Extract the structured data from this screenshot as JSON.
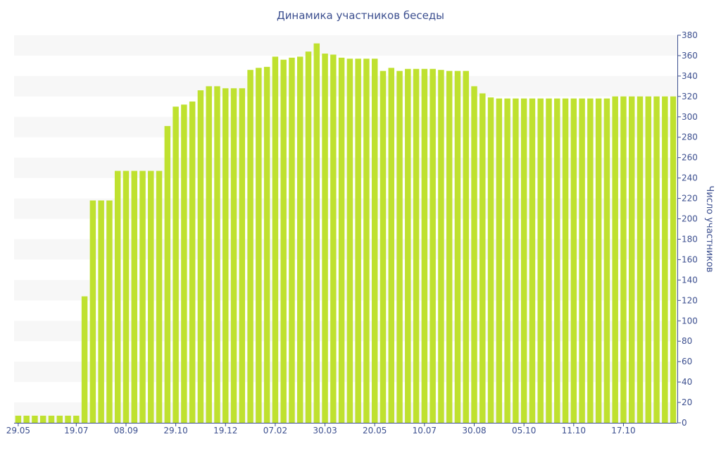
{
  "chart_data": {
    "type": "bar",
    "title": "Динамика участников беседы",
    "ylabel": "Число участников",
    "xlabel": "",
    "ylim": [
      0,
      380
    ],
    "ytick_step": 20,
    "grid": "alternating horizontal bands",
    "bar_color": "#bfe12f",
    "band_color": "#f7f7f7",
    "text_color": "#3c4f8f",
    "x_tick_labels": [
      {
        "label": "29.05",
        "index": 0
      },
      {
        "label": "19.07",
        "index": 7
      },
      {
        "label": "08.09",
        "index": 13
      },
      {
        "label": "29.10",
        "index": 19
      },
      {
        "label": "19.12",
        "index": 25
      },
      {
        "label": "07.02",
        "index": 31
      },
      {
        "label": "30.03",
        "index": 37
      },
      {
        "label": "20.05",
        "index": 43
      },
      {
        "label": "10.07",
        "index": 49
      },
      {
        "label": "30.08",
        "index": 55
      },
      {
        "label": "05.10",
        "index": 61
      },
      {
        "label": "11.10",
        "index": 67
      },
      {
        "label": "17.10",
        "index": 73
      }
    ],
    "values": [
      7,
      7,
      7,
      7,
      7,
      7,
      7,
      7,
      124,
      218,
      218,
      218,
      247,
      247,
      247,
      247,
      247,
      247,
      291,
      310,
      312,
      315,
      326,
      330,
      330,
      328,
      328,
      328,
      346,
      348,
      349,
      359,
      356,
      358,
      359,
      364,
      372,
      362,
      361,
      358,
      357,
      357,
      357,
      357,
      345,
      348,
      345,
      347,
      347,
      347,
      347,
      346,
      345,
      345,
      345,
      330,
      323,
      319,
      318,
      318,
      318,
      318,
      318,
      318,
      318,
      318,
      318,
      318,
      318,
      318,
      318,
      318,
      320,
      320,
      320,
      320,
      320,
      320,
      320,
      320
    ]
  }
}
